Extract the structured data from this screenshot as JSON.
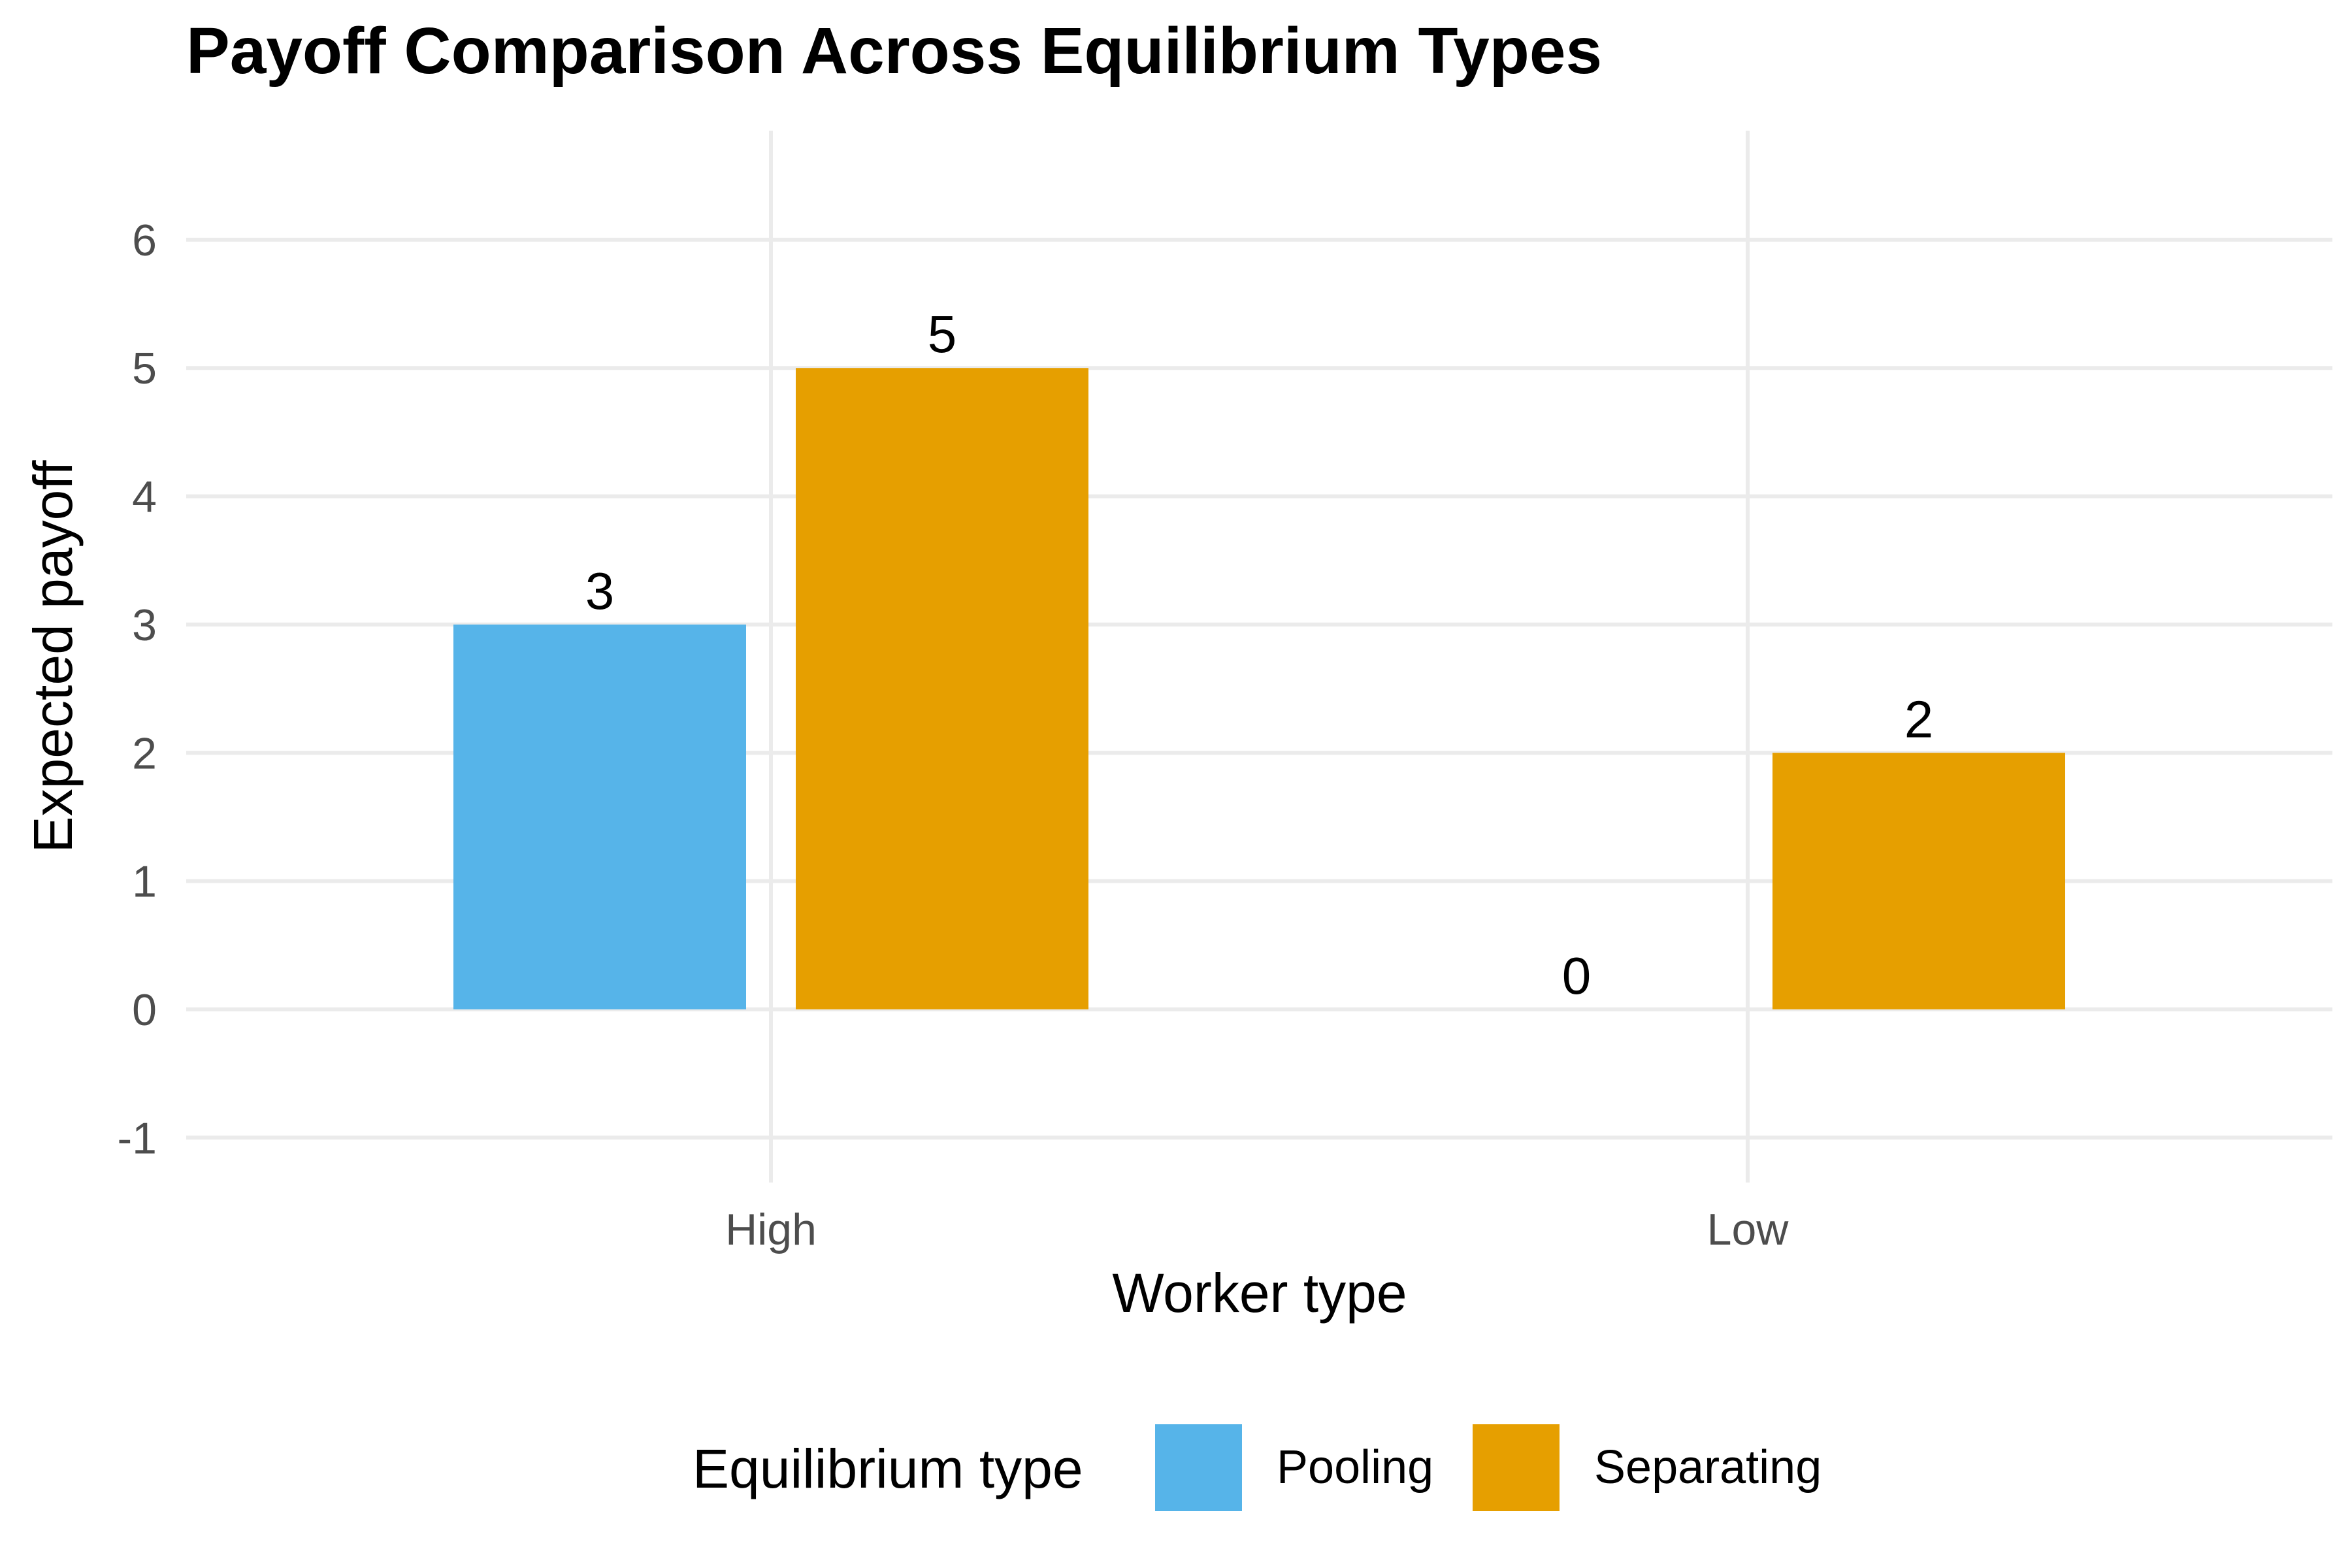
{
  "chart_data": {
    "type": "bar",
    "title": "Payoff Comparison Across Equilibrium Types",
    "xlabel": "Worker type",
    "ylabel": "Expected payoff",
    "categories": [
      "High",
      "Low"
    ],
    "series": [
      {
        "name": "Pooling",
        "values": [
          3,
          0
        ],
        "labels": [
          "3",
          "0"
        ],
        "color": "#56B4E9"
      },
      {
        "name": "Separating",
        "values": [
          5,
          2
        ],
        "labels": [
          "5",
          "2"
        ],
        "color": "#E69F00"
      }
    ],
    "ylim": [
      -1.35,
      6.85
    ],
    "yticks": [
      -1,
      0,
      1,
      2,
      3,
      4,
      5,
      6
    ],
    "ytick_labels": [
      "-1",
      "0",
      "1",
      "2",
      "3",
      "4",
      "5",
      "6"
    ],
    "grid": true,
    "legend": {
      "title": "Equilibrium type",
      "position": "bottom"
    }
  }
}
